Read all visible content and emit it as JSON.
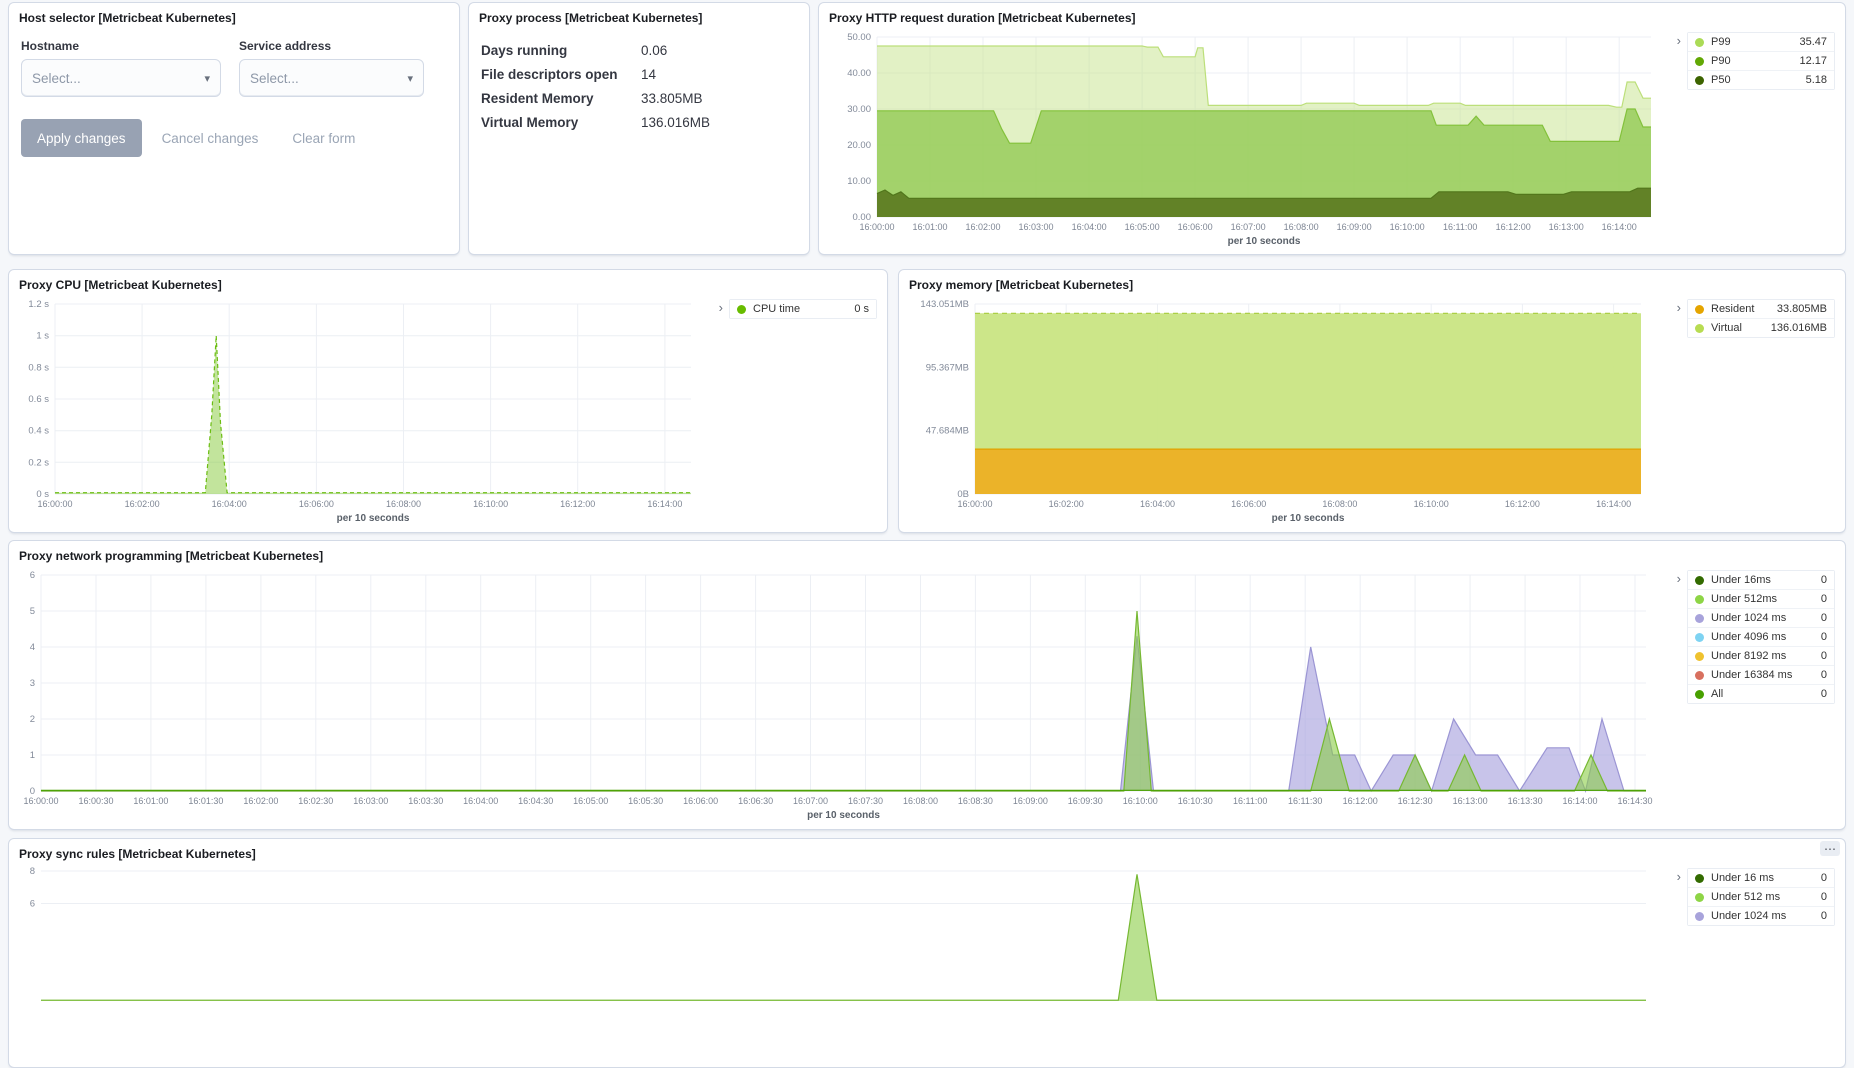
{
  "panels": {
    "host": {
      "title": "Host selector [Metricbeat Kubernetes]",
      "hostname_label": "Hostname",
      "service_label": "Service address",
      "placeholder": "Select...",
      "apply": "Apply changes",
      "cancel": "Cancel changes",
      "clear": "Clear form"
    },
    "process": {
      "title": "Proxy process [Metricbeat Kubernetes]",
      "rows": [
        {
          "label": "Days running",
          "value": "0.06"
        },
        {
          "label": "File descriptors open",
          "value": "14"
        },
        {
          "label": "Resident Memory",
          "value": "33.805MB"
        },
        {
          "label": "Virtual Memory",
          "value": "136.016MB"
        }
      ]
    },
    "http": {
      "title": "Proxy HTTP request duration [Metricbeat Kubernetes]"
    },
    "cpu": {
      "title": "Proxy CPU [Metricbeat Kubernetes]"
    },
    "memory": {
      "title": "Proxy memory [Metricbeat Kubernetes]"
    },
    "network": {
      "title": "Proxy network programming [Metricbeat Kubernetes]"
    },
    "sync": {
      "title": "Proxy sync rules [Metricbeat Kubernetes]",
      "options_icon": "⋯"
    }
  },
  "chart_data": {
    "http": {
      "type": "area",
      "title": "Proxy HTTP request duration [Metricbeat Kubernetes]",
      "xlabel": "per 10 seconds",
      "xlim": [
        0,
        14.6
      ],
      "ylim": [
        0,
        50
      ],
      "legend_position": "right",
      "grid": true,
      "y_ticks": [
        {
          "v": 0,
          "label": "0.00"
        },
        {
          "v": 10,
          "label": "10.00"
        },
        {
          "v": 20,
          "label": "20.00"
        },
        {
          "v": 30,
          "label": "30.00"
        },
        {
          "v": 40,
          "label": "40.00"
        },
        {
          "v": 50,
          "label": "50.00"
        }
      ],
      "x_ticks": [
        {
          "v": 0,
          "label": "16:00:00"
        },
        {
          "v": 1,
          "label": "16:01:00"
        },
        {
          "v": 2,
          "label": "16:02:00"
        },
        {
          "v": 3,
          "label": "16:03:00"
        },
        {
          "v": 4,
          "label": "16:04:00"
        },
        {
          "v": 5,
          "label": "16:05:00"
        },
        {
          "v": 6,
          "label": "16:06:00"
        },
        {
          "v": 7,
          "label": "16:07:00"
        },
        {
          "v": 8,
          "label": "16:08:00"
        },
        {
          "v": 9,
          "label": "16:09:00"
        },
        {
          "v": 10,
          "label": "16:10:00"
        },
        {
          "v": 11,
          "label": "16:11:00"
        },
        {
          "v": 12,
          "label": "16:12:00"
        },
        {
          "v": 13,
          "label": "16:13:00"
        },
        {
          "v": 14,
          "label": "16:14:00"
        }
      ],
      "legend": [
        {
          "label": "P99",
          "value": "35.47",
          "color": "#ABDB56"
        },
        {
          "label": "P90",
          "value": "12.17",
          "color": "#62A804"
        },
        {
          "label": "P50",
          "value": "5.18",
          "color": "#3D6400"
        }
      ],
      "series": [
        {
          "name": "P99",
          "line": "#BCDF7A",
          "fill": "rgba(198,228,139,0.5)",
          "points": [
            [
              0,
              47.5
            ],
            [
              5.0,
              47.5
            ],
            [
              5.1,
              47.2
            ],
            [
              5.3,
              47.2
            ],
            [
              5.4,
              44.5
            ],
            [
              6.0,
              44.5
            ],
            [
              6.05,
              47
            ],
            [
              6.15,
              47
            ],
            [
              6.25,
              31
            ],
            [
              8.0,
              31
            ],
            [
              8.1,
              31.6
            ],
            [
              9.0,
              31.6
            ],
            [
              9.1,
              31
            ],
            [
              10.4,
              31
            ],
            [
              10.5,
              31.6
            ],
            [
              11.0,
              31.6
            ],
            [
              11.1,
              31
            ],
            [
              13.8,
              31
            ],
            [
              13.95,
              30.5
            ],
            [
              14.05,
              30.5
            ],
            [
              14.15,
              37.5
            ],
            [
              14.3,
              37.5
            ],
            [
              14.45,
              33
            ],
            [
              14.6,
              33
            ]
          ]
        },
        {
          "name": "P90",
          "line": "#83C13B",
          "fill": "rgba(148,203,84,0.8)",
          "points": [
            [
              0,
              29.5
            ],
            [
              2.2,
              29.5
            ],
            [
              2.35,
              24.5
            ],
            [
              2.5,
              20.5
            ],
            [
              2.9,
              20.5
            ],
            [
              3.0,
              25
            ],
            [
              3.1,
              29.5
            ],
            [
              10.45,
              29.5
            ],
            [
              10.55,
              25.5
            ],
            [
              11.15,
              25.5
            ],
            [
              11.3,
              28
            ],
            [
              11.45,
              25.5
            ],
            [
              12.55,
              25.5
            ],
            [
              12.7,
              21
            ],
            [
              14.0,
              21
            ],
            [
              14.15,
              30
            ],
            [
              14.3,
              30
            ],
            [
              14.45,
              25
            ],
            [
              14.6,
              25
            ]
          ]
        },
        {
          "name": "P50",
          "line": "#51761B",
          "fill": "rgba(95,125,36,0.95)",
          "points": [
            [
              0,
              6.5
            ],
            [
              0.15,
              7.5
            ],
            [
              0.3,
              6
            ],
            [
              0.45,
              7
            ],
            [
              0.6,
              5.2
            ],
            [
              10.45,
              5.2
            ],
            [
              10.6,
              7
            ],
            [
              11.9,
              7
            ],
            [
              12.05,
              6.3
            ],
            [
              12.95,
              6.3
            ],
            [
              13.1,
              7
            ],
            [
              14.2,
              7
            ],
            [
              14.35,
              8
            ],
            [
              14.6,
              8
            ]
          ]
        }
      ]
    },
    "cpu": {
      "type": "area",
      "title": "Proxy CPU [Metricbeat Kubernetes]",
      "xlabel": "per 10 seconds",
      "xlim": [
        0,
        14.6
      ],
      "ylim": [
        0,
        1.2
      ],
      "grid": true,
      "y_ticks": [
        {
          "v": 0,
          "label": "0 s"
        },
        {
          "v": 0.2,
          "label": "0.2 s"
        },
        {
          "v": 0.4,
          "label": "0.4 s"
        },
        {
          "v": 0.6,
          "label": "0.6 s"
        },
        {
          "v": 0.8,
          "label": "0.8 s"
        },
        {
          "v": 1,
          "label": "1 s"
        },
        {
          "v": 1.2,
          "label": "1.2 s"
        }
      ],
      "x_ticks": [
        {
          "v": 0,
          "label": "16:00:00"
        },
        {
          "v": 2,
          "label": "16:02:00"
        },
        {
          "v": 4,
          "label": "16:04:00"
        },
        {
          "v": 6,
          "label": "16:06:00"
        },
        {
          "v": 8,
          "label": "16:08:00"
        },
        {
          "v": 10,
          "label": "16:10:00"
        },
        {
          "v": 12,
          "label": "16:12:00"
        },
        {
          "v": 14,
          "label": "16:14:00"
        }
      ],
      "legend": [
        {
          "label": "CPU time",
          "value": "0 s",
          "color": "#68BC00"
        }
      ],
      "series": [
        {
          "name": "CPU time",
          "line": "#6BBD11",
          "fill": "rgba(120,195,35,0.45)",
          "dash": "4,3",
          "points": [
            [
              0,
              0.008
            ],
            [
              3.45,
              0.008
            ],
            [
              3.6,
              0.5
            ],
            [
              3.7,
              1.0
            ],
            [
              3.8,
              0.45
            ],
            [
              3.95,
              0.008
            ],
            [
              14.6,
              0.008
            ]
          ]
        }
      ]
    },
    "memory": {
      "type": "area",
      "title": "Proxy memory [Metricbeat Kubernetes]",
      "xlabel": "per 10 seconds",
      "xlim": [
        0,
        14.6
      ],
      "ylim": [
        0,
        143.051
      ],
      "grid": true,
      "y_ticks": [
        {
          "v": 0,
          "label": "0B"
        },
        {
          "v": 47.684,
          "label": "47.684MB"
        },
        {
          "v": 95.367,
          "label": "95.367MB"
        },
        {
          "v": 143.051,
          "label": "143.051MB"
        }
      ],
      "x_ticks": [
        {
          "v": 0,
          "label": "16:00:00"
        },
        {
          "v": 2,
          "label": "16:02:00"
        },
        {
          "v": 4,
          "label": "16:04:00"
        },
        {
          "v": 6,
          "label": "16:06:00"
        },
        {
          "v": 8,
          "label": "16:08:00"
        },
        {
          "v": 10,
          "label": "16:10:00"
        },
        {
          "v": 12,
          "label": "16:12:00"
        },
        {
          "v": 14,
          "label": "16:14:00"
        }
      ],
      "legend": [
        {
          "label": "Resident",
          "value": "33.805MB",
          "color": "#E5A500"
        },
        {
          "label": "Virtual",
          "value": "136.016MB",
          "color": "#B8DC52"
        }
      ],
      "series": [
        {
          "name": "Virtual",
          "line": "#A8CC3E",
          "fill": "rgba(201,229,131,0.95)",
          "dash": "5,4",
          "points": [
            [
              0,
              136.016
            ],
            [
              14.6,
              136.016
            ]
          ]
        },
        {
          "name": "Resident",
          "line": "#E0A100",
          "fill": "rgba(235,179,41,1)",
          "points": [
            [
              0,
              33.805
            ],
            [
              14.6,
              33.805
            ]
          ]
        }
      ]
    },
    "network": {
      "type": "area",
      "title": "Proxy network programming [Metricbeat Kubernetes]",
      "xlabel": "per 10 seconds",
      "xlim": [
        0,
        14.6
      ],
      "ylim": [
        0,
        6
      ],
      "grid": true,
      "y_ticks": [
        {
          "v": 0,
          "label": "0"
        },
        {
          "v": 1,
          "label": "1"
        },
        {
          "v": 2,
          "label": "2"
        },
        {
          "v": 3,
          "label": "3"
        },
        {
          "v": 4,
          "label": "4"
        },
        {
          "v": 5,
          "label": "5"
        },
        {
          "v": 6,
          "label": "6"
        }
      ],
      "x_ticks": [
        {
          "v": 0,
          "label": "16:00:00"
        },
        {
          "v": 0.5,
          "label": "16:00:30"
        },
        {
          "v": 1,
          "label": "16:01:00"
        },
        {
          "v": 1.5,
          "label": "16:01:30"
        },
        {
          "v": 2,
          "label": "16:02:00"
        },
        {
          "v": 2.5,
          "label": "16:02:30"
        },
        {
          "v": 3,
          "label": "16:03:00"
        },
        {
          "v": 3.5,
          "label": "16:03:30"
        },
        {
          "v": 4,
          "label": "16:04:00"
        },
        {
          "v": 4.5,
          "label": "16:04:30"
        },
        {
          "v": 5,
          "label": "16:05:00"
        },
        {
          "v": 5.5,
          "label": "16:05:30"
        },
        {
          "v": 6,
          "label": "16:06:00"
        },
        {
          "v": 6.5,
          "label": "16:06:30"
        },
        {
          "v": 7,
          "label": "16:07:00"
        },
        {
          "v": 7.5,
          "label": "16:07:30"
        },
        {
          "v": 8,
          "label": "16:08:00"
        },
        {
          "v": 8.5,
          "label": "16:08:30"
        },
        {
          "v": 9,
          "label": "16:09:00"
        },
        {
          "v": 9.5,
          "label": "16:09:30"
        },
        {
          "v": 10,
          "label": "16:10:00"
        },
        {
          "v": 10.5,
          "label": "16:10:30"
        },
        {
          "v": 11,
          "label": "16:11:00"
        },
        {
          "v": 11.5,
          "label": "16:11:30"
        },
        {
          "v": 12,
          "label": "16:12:00"
        },
        {
          "v": 12.5,
          "label": "16:12:30"
        },
        {
          "v": 13,
          "label": "16:13:00"
        },
        {
          "v": 13.5,
          "label": "16:13:30"
        },
        {
          "v": 14,
          "label": "16:14:00"
        },
        {
          "v": 14.5,
          "label": "16:14:30"
        }
      ],
      "legend": [
        {
          "label": "Under 16ms",
          "value": "0",
          "color": "#336B00"
        },
        {
          "label": "Under 512ms",
          "value": "0",
          "color": "#8ED546"
        },
        {
          "label": "Under 1024 ms",
          "value": "0",
          "color": "#A8A3DB"
        },
        {
          "label": "Under 4096 ms",
          "value": "0",
          "color": "#7ED3F2"
        },
        {
          "label": "Under 8192 ms",
          "value": "0",
          "color": "#EFC22F"
        },
        {
          "label": "Under 16384 ms",
          "value": "0",
          "color": "#D8705F"
        },
        {
          "label": "All",
          "value": "0",
          "color": "#48A000"
        }
      ],
      "series": [
        {
          "name": "Under 1024 ms",
          "line": "#9B95D4",
          "fill": "rgba(170,165,222,0.65)",
          "points": [
            [
              0,
              0
            ],
            [
              9.82,
              0
            ],
            [
              9.97,
              4.3
            ],
            [
              10.12,
              0
            ],
            [
              11.35,
              0
            ],
            [
              11.55,
              4
            ],
            [
              11.75,
              1
            ],
            [
              11.95,
              1
            ],
            [
              12.1,
              0
            ],
            [
              12.3,
              1
            ],
            [
              12.5,
              1
            ],
            [
              12.65,
              0
            ],
            [
              12.85,
              2
            ],
            [
              13.05,
              1
            ],
            [
              13.25,
              1
            ],
            [
              13.45,
              0
            ],
            [
              13.7,
              1.2
            ],
            [
              13.9,
              1.2
            ],
            [
              14.05,
              0
            ],
            [
              14.2,
              2
            ],
            [
              14.4,
              0
            ],
            [
              14.6,
              0
            ]
          ]
        },
        {
          "name": "Under 512ms",
          "line": "#76B832",
          "fill": "rgba(139,205,70,0.6)",
          "points": [
            [
              0,
              0
            ],
            [
              9.85,
              0
            ],
            [
              9.97,
              5
            ],
            [
              10.1,
              0
            ],
            [
              11.55,
              0
            ],
            [
              11.72,
              2
            ],
            [
              11.9,
              0
            ],
            [
              12.35,
              0
            ],
            [
              12.5,
              1
            ],
            [
              12.65,
              0
            ],
            [
              12.8,
              0
            ],
            [
              12.95,
              1
            ],
            [
              13.1,
              0
            ],
            [
              13.95,
              0
            ],
            [
              14.1,
              1
            ],
            [
              14.25,
              0
            ],
            [
              14.6,
              0
            ]
          ]
        },
        {
          "name": "All",
          "line": "#48A000",
          "points": [
            [
              0,
              0.02
            ],
            [
              14.6,
              0.02
            ]
          ]
        }
      ]
    },
    "sync": {
      "type": "area",
      "title": "Proxy sync rules [Metricbeat Kubernetes]",
      "xlim": [
        0,
        14.6
      ],
      "ylim": [
        0,
        8
      ],
      "grid": true,
      "y_ticks": [
        {
          "v": 8,
          "label": "8"
        },
        {
          "v": 6,
          "label": "6"
        }
      ],
      "legend": [
        {
          "label": "Under 16 ms",
          "value": "0",
          "color": "#336B00"
        },
        {
          "label": "Under 512 ms",
          "value": "0",
          "color": "#8ED546"
        },
        {
          "label": "Under 1024 ms",
          "value": "0",
          "color": "#A8A3DB"
        }
      ],
      "series": [
        {
          "name": "Under 512 ms",
          "line": "#76B832",
          "fill": "rgba(139,205,70,0.6)",
          "points": [
            [
              0,
              0.05
            ],
            [
              9.8,
              0.05
            ],
            [
              9.97,
              7.8
            ],
            [
              10.15,
              0.05
            ],
            [
              14.6,
              0.05
            ]
          ]
        }
      ]
    }
  }
}
